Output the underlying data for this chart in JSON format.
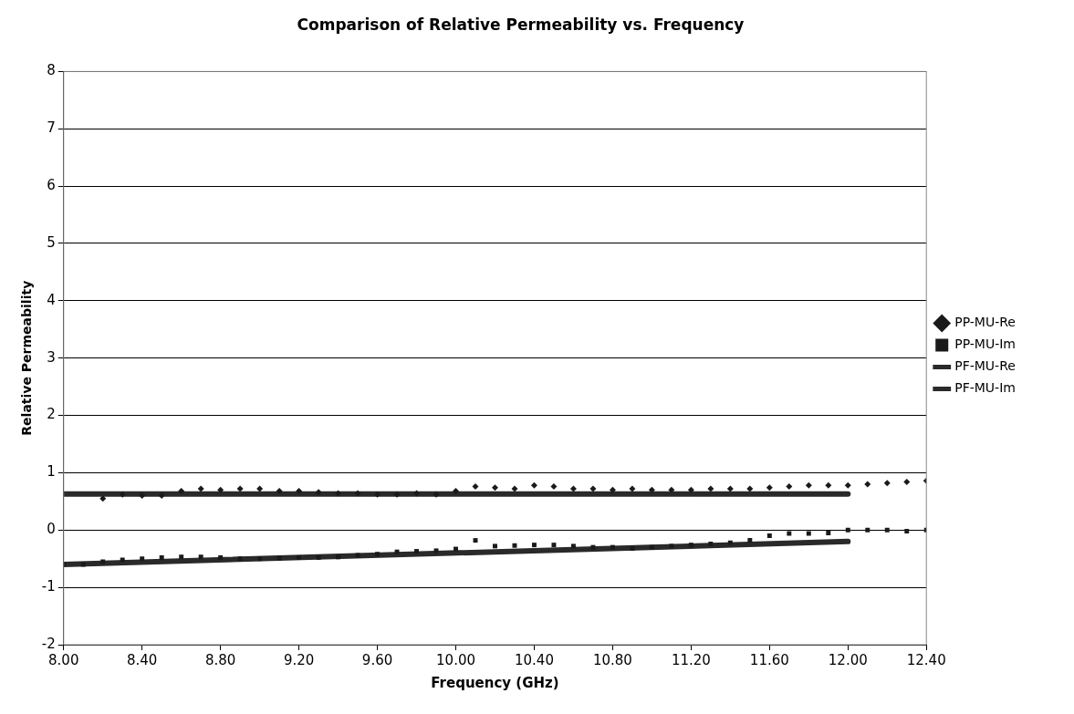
{
  "chart_data": {
    "type": "scatter",
    "title": "Comparison of Relative Permeability vs. Frequency",
    "xlabel": "Frequency (GHz)",
    "ylabel": "Relative Permeability",
    "xlim": [
      8.0,
      12.4
    ],
    "xticks": [
      {
        "value": 8.0,
        "label": "8.00"
      },
      {
        "value": 8.4,
        "label": "8.40"
      },
      {
        "value": 8.8,
        "label": "8.80"
      },
      {
        "value": 9.2,
        "label": "9.20"
      },
      {
        "value": 9.6,
        "label": "9.60"
      },
      {
        "value": 10.0,
        "label": "10.00"
      },
      {
        "value": 10.4,
        "label": "10.40"
      },
      {
        "value": 10.8,
        "label": "10.80"
      },
      {
        "value": 11.2,
        "label": "11.20"
      },
      {
        "value": 11.6,
        "label": "11.60"
      },
      {
        "value": 12.0,
        "label": "12.00"
      },
      {
        "value": 12.4,
        "label": "12.40"
      }
    ],
    "ylim": [
      -2,
      8
    ],
    "yticks": [
      -2,
      -1,
      0,
      1,
      2,
      3,
      4,
      5,
      6,
      7,
      8
    ],
    "grid": "y",
    "legend": "right",
    "series": [
      {
        "name": "PP-MU-Re",
        "type": "scatter",
        "marker": "diamond",
        "color": "#1a1a1a",
        "x": [
          8.2,
          8.3,
          8.4,
          8.5,
          8.6,
          8.7,
          8.8,
          8.9,
          9.0,
          9.1,
          9.2,
          9.3,
          9.4,
          9.5,
          9.6,
          9.7,
          9.8,
          9.9,
          10.0,
          10.1,
          10.2,
          10.3,
          10.4,
          10.5,
          10.6,
          10.7,
          10.8,
          10.9,
          11.0,
          11.1,
          11.2,
          11.3,
          11.4,
          11.5,
          11.6,
          11.7,
          11.8,
          11.9,
          12.0,
          12.1,
          12.2,
          12.3,
          12.4
        ],
        "values": [
          0.55,
          0.62,
          0.6,
          0.6,
          0.68,
          0.72,
          0.7,
          0.72,
          0.72,
          0.68,
          0.68,
          0.66,
          0.64,
          0.64,
          0.62,
          0.62,
          0.64,
          0.62,
          0.68,
          0.76,
          0.74,
          0.72,
          0.78,
          0.76,
          0.72,
          0.72,
          0.7,
          0.72,
          0.7,
          0.7,
          0.7,
          0.72,
          0.72,
          0.72,
          0.74,
          0.76,
          0.78,
          0.78,
          0.78,
          0.8,
          0.82,
          0.84,
          0.86
        ]
      },
      {
        "name": "PP-MU-Im",
        "type": "scatter",
        "marker": "square",
        "color": "#1a1a1a",
        "x": [
          8.0,
          8.1,
          8.2,
          8.3,
          8.4,
          8.5,
          8.6,
          8.7,
          8.8,
          8.9,
          9.0,
          9.1,
          9.2,
          9.3,
          9.4,
          9.5,
          9.6,
          9.7,
          9.8,
          9.9,
          10.0,
          10.1,
          10.2,
          10.3,
          10.4,
          10.5,
          10.6,
          10.7,
          10.8,
          10.9,
          11.0,
          11.1,
          11.2,
          11.3,
          11.4,
          11.5,
          11.6,
          11.7,
          11.8,
          11.9,
          12.0,
          12.1,
          12.2,
          12.3,
          12.4
        ],
        "values": [
          -0.6,
          -0.6,
          -0.55,
          -0.52,
          -0.5,
          -0.48,
          -0.47,
          -0.47,
          -0.48,
          -0.5,
          -0.5,
          -0.49,
          -0.48,
          -0.48,
          -0.47,
          -0.44,
          -0.42,
          -0.38,
          -0.37,
          -0.36,
          -0.33,
          -0.18,
          -0.28,
          -0.27,
          -0.26,
          -0.26,
          -0.28,
          -0.3,
          -0.3,
          -0.32,
          -0.3,
          -0.28,
          -0.26,
          -0.24,
          -0.22,
          -0.18,
          -0.1,
          -0.06,
          -0.06,
          -0.05,
          0.0,
          0.0,
          0.0,
          -0.02,
          0.0
        ]
      },
      {
        "name": "PF-MU-Re",
        "type": "line",
        "marker": "none",
        "color": "#2a2a2a",
        "x": [
          8.0,
          12.0
        ],
        "values": [
          0.63,
          0.63
        ]
      },
      {
        "name": "PF-MU-Im",
        "type": "line",
        "marker": "none",
        "color": "#2a2a2a",
        "x": [
          8.0,
          12.0
        ],
        "values": [
          -0.6,
          -0.2
        ]
      }
    ]
  }
}
